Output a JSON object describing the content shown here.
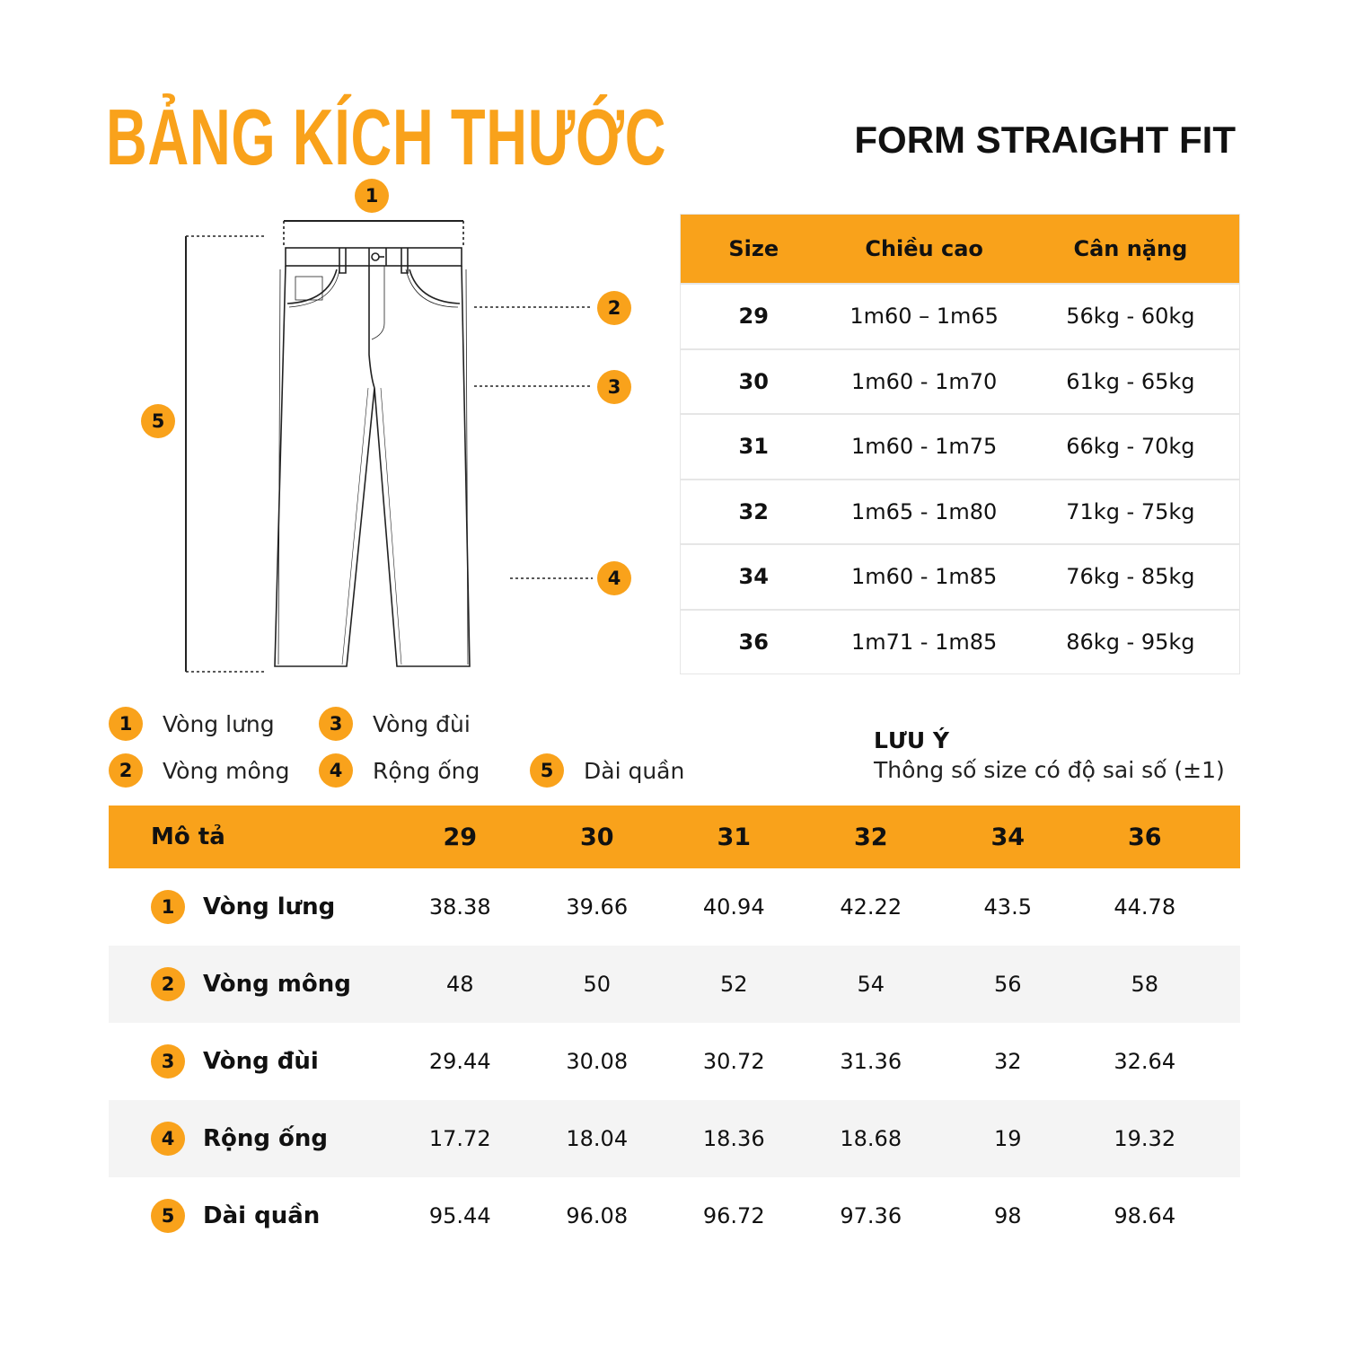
{
  "header": {
    "title": "BẢNG KÍCH THƯỚC",
    "subtitle": "FORM STRAIGHT FIT"
  },
  "colors": {
    "accent": "#F9A21B",
    "row_alt": "#f4f4f4"
  },
  "diagram": {
    "markers": [
      "1",
      "2",
      "3",
      "4",
      "5"
    ]
  },
  "size_table": {
    "headers": [
      "Size",
      "Chiều cao",
      "Cân nặng"
    ],
    "rows": [
      [
        "29",
        "1m60 – 1m65",
        "56kg - 60kg"
      ],
      [
        "30",
        "1m60 - 1m70",
        "61kg - 65kg"
      ],
      [
        "31",
        "1m60 - 1m75",
        "66kg - 70kg"
      ],
      [
        "32",
        "1m65 - 1m80",
        "71kg - 75kg"
      ],
      [
        "34",
        "1m60 - 1m85",
        "76kg - 85kg"
      ],
      [
        "36",
        "1m71 - 1m85",
        "86kg - 95kg"
      ]
    ]
  },
  "legend": [
    {
      "num": "1",
      "label": "Vòng lưng"
    },
    {
      "num": "2",
      "label": "Vòng mông"
    },
    {
      "num": "3",
      "label": "Vòng đùi"
    },
    {
      "num": "4",
      "label": "Rộng ống"
    },
    {
      "num": "5",
      "label": "Dài quần"
    }
  ],
  "note": {
    "title": "LƯU Ý",
    "text": "Thông số size có độ sai số (±1)"
  },
  "measure_table": {
    "headers": [
      "Mô tả",
      "29",
      "30",
      "31",
      "32",
      "34",
      "36"
    ],
    "rows": [
      {
        "num": "1",
        "label": "Vòng lưng",
        "values": [
          "38.38",
          "39.66",
          "40.94",
          "42.22",
          "43.5",
          "44.78"
        ]
      },
      {
        "num": "2",
        "label": "Vòng mông",
        "values": [
          "48",
          "50",
          "52",
          "54",
          "56",
          "58"
        ]
      },
      {
        "num": "3",
        "label": "Vòng đùi",
        "values": [
          "29.44",
          "30.08",
          "30.72",
          "31.36",
          "32",
          "32.64"
        ]
      },
      {
        "num": "4",
        "label": "Rộng ống",
        "values": [
          "17.72",
          "18.04",
          "18.36",
          "18.68",
          "19",
          "19.32"
        ]
      },
      {
        "num": "5",
        "label": "Dài quần",
        "values": [
          "95.44",
          "96.08",
          "96.72",
          "97.36",
          "98",
          "98.64"
        ]
      }
    ]
  }
}
